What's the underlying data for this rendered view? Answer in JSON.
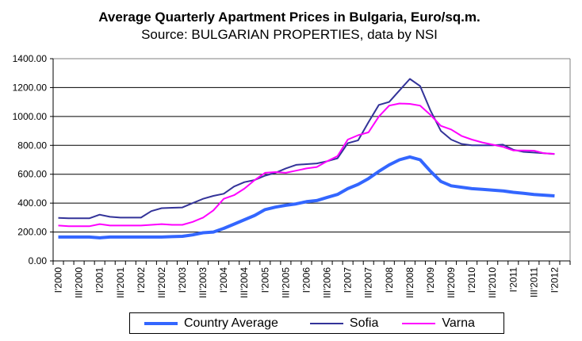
{
  "chart_data": {
    "type": "line",
    "title": "Average Quarterly Apartment Prices in Bulgaria, Euro/sq.m.",
    "subtitle": "Source: BULGARIAN PROPERTIES, data by NSI",
    "xlabel": "",
    "ylabel": "",
    "x_frequency": "quarterly",
    "x_tick_labels": [
      "I'2000",
      "III'2000",
      "I'2001",
      "III'2001",
      "I'2002",
      "III'2002",
      "I'2003",
      "III'2003",
      "I'2004",
      "III'2004",
      "I'2005",
      "III'2005",
      "I'2006",
      "III'2006",
      "I'2007",
      "III'2007",
      "I'2008",
      "III'2008",
      "I'2009",
      "III'2009",
      "I'2010",
      "III'2010",
      "I'2011",
      "III'2011",
      "I'2012"
    ],
    "y_tick_labels": [
      "0.00",
      "200.00",
      "400.00",
      "600.00",
      "800.00",
      "1000.00",
      "1200.00",
      "1400.00"
    ],
    "ylim": [
      0,
      1400
    ],
    "grid": true,
    "legend_position": "bottom",
    "series": [
      {
        "name": "Country Average",
        "color": "#3366FF",
        "values": [
          165,
          165,
          165,
          165,
          160,
          165,
          165,
          165,
          165,
          165,
          165,
          168,
          170,
          180,
          195,
          200,
          225,
          255,
          285,
          315,
          355,
          372,
          385,
          395,
          410,
          418,
          440,
          460,
          500,
          530,
          570,
          620,
          665,
          700,
          720,
          700,
          620,
          550,
          520,
          510,
          500,
          495,
          490,
          485,
          475,
          468,
          460,
          455,
          450
        ]
      },
      {
        "name": "Sofia",
        "color": "#333399",
        "values": [
          298,
          295,
          295,
          295,
          320,
          305,
          300,
          300,
          300,
          345,
          365,
          368,
          370,
          400,
          430,
          450,
          465,
          515,
          545,
          560,
          590,
          610,
          640,
          665,
          670,
          675,
          690,
          710,
          815,
          835,
          960,
          1080,
          1100,
          1180,
          1260,
          1210,
          1040,
          900,
          840,
          810,
          800,
          800,
          800,
          805,
          770,
          755,
          750,
          745,
          740
        ]
      },
      {
        "name": "Varna",
        "color": "#FF00FF",
        "values": [
          245,
          240,
          240,
          240,
          255,
          245,
          245,
          245,
          245,
          250,
          255,
          250,
          250,
          270,
          300,
          350,
          430,
          455,
          500,
          560,
          610,
          615,
          610,
          625,
          640,
          650,
          690,
          725,
          840,
          870,
          890,
          1000,
          1075,
          1090,
          1087,
          1075,
          1010,
          935,
          910,
          865,
          840,
          820,
          805,
          790,
          765,
          765,
          763,
          745,
          741
        ]
      }
    ]
  }
}
